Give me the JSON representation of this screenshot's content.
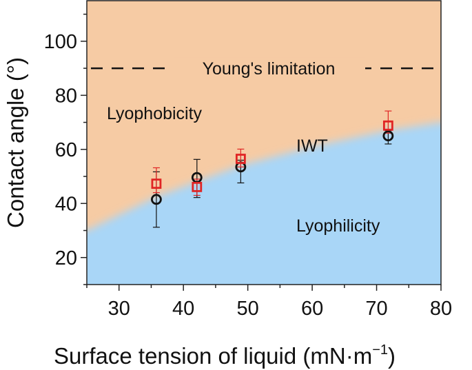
{
  "chart_data": {
    "type": "scatter",
    "xlabel": "Surface tension of liquid (mN·m",
    "xlabel_sup": "−1",
    "xlabel_close": ")",
    "ylabel": "Contact angle (°)",
    "xlim": [
      25,
      80
    ],
    "ylim": [
      10,
      115
    ],
    "xticks": [
      30,
      40,
      50,
      60,
      70,
      80
    ],
    "yticks": [
      20,
      40,
      60,
      80,
      100
    ],
    "grid": false,
    "regions": {
      "upper": {
        "label": "Lyophobicity",
        "color": "#f6cba4"
      },
      "lower": {
        "label": "Lyophilicity",
        "color": "#a9d6f7"
      },
      "boundary_label": "IWT",
      "boundary": {
        "x": [
          25,
          35.8,
          42,
          48.8,
          60,
          71.7,
          80
        ],
        "y": [
          30,
          42.5,
          48,
          54,
          61,
          67,
          70
        ]
      }
    },
    "reference_line": {
      "y": 90,
      "label": "Young's limitation",
      "style": "dashed"
    },
    "series": [
      {
        "marker": "circle",
        "color": "#111111",
        "x": [
          35.8,
          42.1,
          48.9,
          71.8
        ],
        "y": [
          41.5,
          49.6,
          53.5,
          65.0
        ],
        "err_low": [
          31.2,
          42.2,
          47.6,
          62.0
        ],
        "err_high": [
          51.7,
          56.3,
          56.0,
          67.0
        ]
      },
      {
        "marker": "square",
        "color": "#e02424",
        "x": [
          35.8,
          42.1,
          48.9,
          71.8
        ],
        "y": [
          47.3,
          46.1,
          56.5,
          68.8
        ],
        "err_low": [
          44.0,
          43.0,
          53.5,
          66.0
        ],
        "err_high": [
          53.2,
          49.0,
          60.1,
          74.2
        ]
      }
    ]
  }
}
